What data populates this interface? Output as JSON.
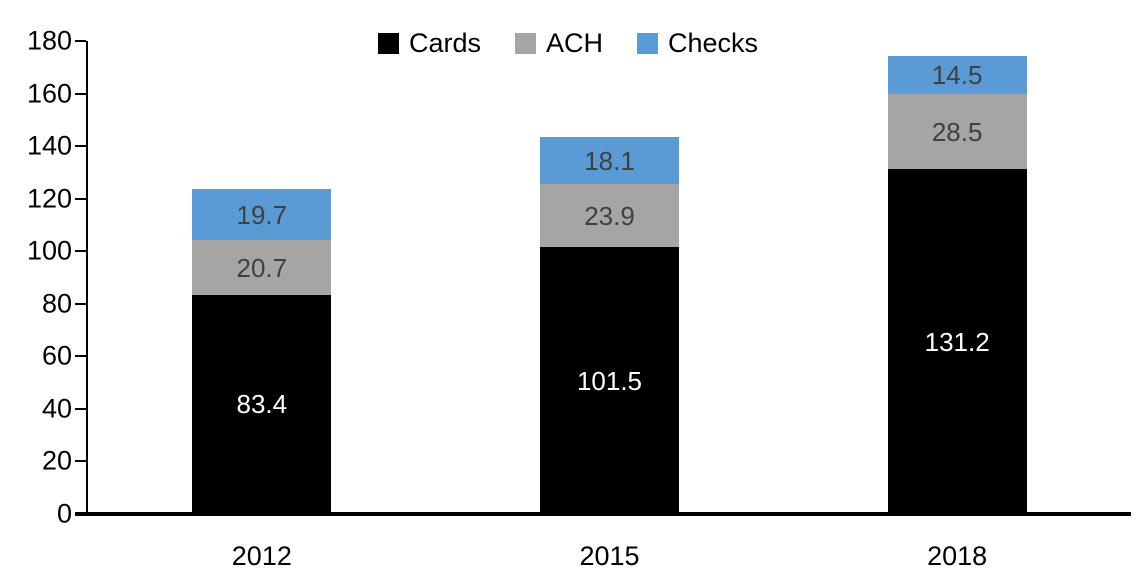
{
  "chart_data": {
    "type": "bar",
    "stacked": true,
    "categories": [
      "2012",
      "2015",
      "2018"
    ],
    "series": [
      {
        "name": "Cards",
        "color": "#000000",
        "label_color": "#ffffff",
        "values": [
          83.4,
          101.5,
          131.2
        ]
      },
      {
        "name": "ACH",
        "color": "#A5A5A5",
        "label_color": "#404040",
        "values": [
          20.7,
          23.9,
          28.5
        ]
      },
      {
        "name": "Checks",
        "color": "#5B9BD5",
        "label_color": "#404040",
        "values": [
          19.7,
          18.1,
          14.5
        ]
      }
    ],
    "totals": [
      123.8,
      143.5,
      174.2
    ],
    "title": "",
    "xlabel": "",
    "ylabel": "",
    "ylim": [
      0,
      180
    ],
    "ytick_step": 20,
    "ytick_labels": [
      "0",
      "20",
      "40",
      "60",
      "80",
      "100",
      "120",
      "140",
      "160",
      "180"
    ],
    "legend_position": "top",
    "grid": false,
    "axis_color": "#000000",
    "background_color": "#ffffff"
  }
}
